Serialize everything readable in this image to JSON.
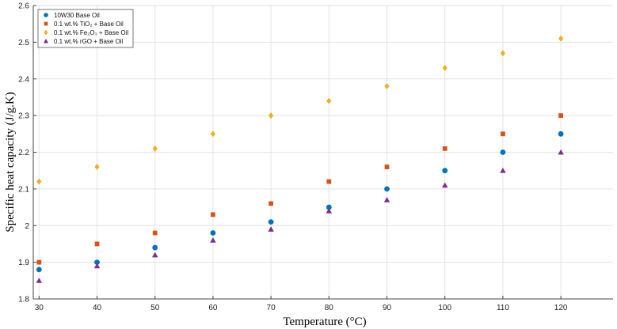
{
  "chart_data": {
    "type": "scatter",
    "title": "",
    "xlabel": "Temperature (°C)",
    "ylabel": "Specific heat capacity (J/g.K)",
    "x": [
      30,
      40,
      50,
      60,
      70,
      80,
      90,
      100,
      110,
      120
    ],
    "xlim": [
      29,
      129
    ],
    "ylim": [
      1.8,
      2.6
    ],
    "xticks": [
      "30",
      "40",
      "50",
      "60",
      "70",
      "80",
      "90",
      "100",
      "110",
      "120"
    ],
    "yticks": [
      "1.8",
      "1.9",
      "2",
      "2.1",
      "2.2",
      "2.3",
      "2.4",
      "2.5",
      "2.6"
    ],
    "grid": true,
    "legend_position": "top-left",
    "series": [
      {
        "name": "10W30 Base Oil",
        "marker": "circle",
        "color": "#0072BD",
        "values": [
          1.88,
          1.9,
          1.94,
          1.98,
          2.01,
          2.05,
          2.1,
          2.15,
          2.2,
          2.25
        ]
      },
      {
        "name": "0.1 wt.% TiO₂ + Base Oil",
        "marker": "square",
        "color": "#D95319",
        "values": [
          1.9,
          1.95,
          1.98,
          2.03,
          2.06,
          2.12,
          2.16,
          2.21,
          2.25,
          2.3
        ]
      },
      {
        "name": "0.1 wt.% Fe₂O₃ + Base Oil",
        "marker": "diamond",
        "color": "#EDB120",
        "values": [
          2.12,
          2.16,
          2.21,
          2.25,
          2.3,
          2.34,
          2.38,
          2.43,
          2.47,
          2.51
        ]
      },
      {
        "name": "0.1 wt.% rGO + Base Oil",
        "marker": "triangle",
        "color": "#7E2F8E",
        "values": [
          1.85,
          1.89,
          1.92,
          1.96,
          1.99,
          2.04,
          2.07,
          2.11,
          2.15,
          2.2
        ]
      }
    ]
  }
}
